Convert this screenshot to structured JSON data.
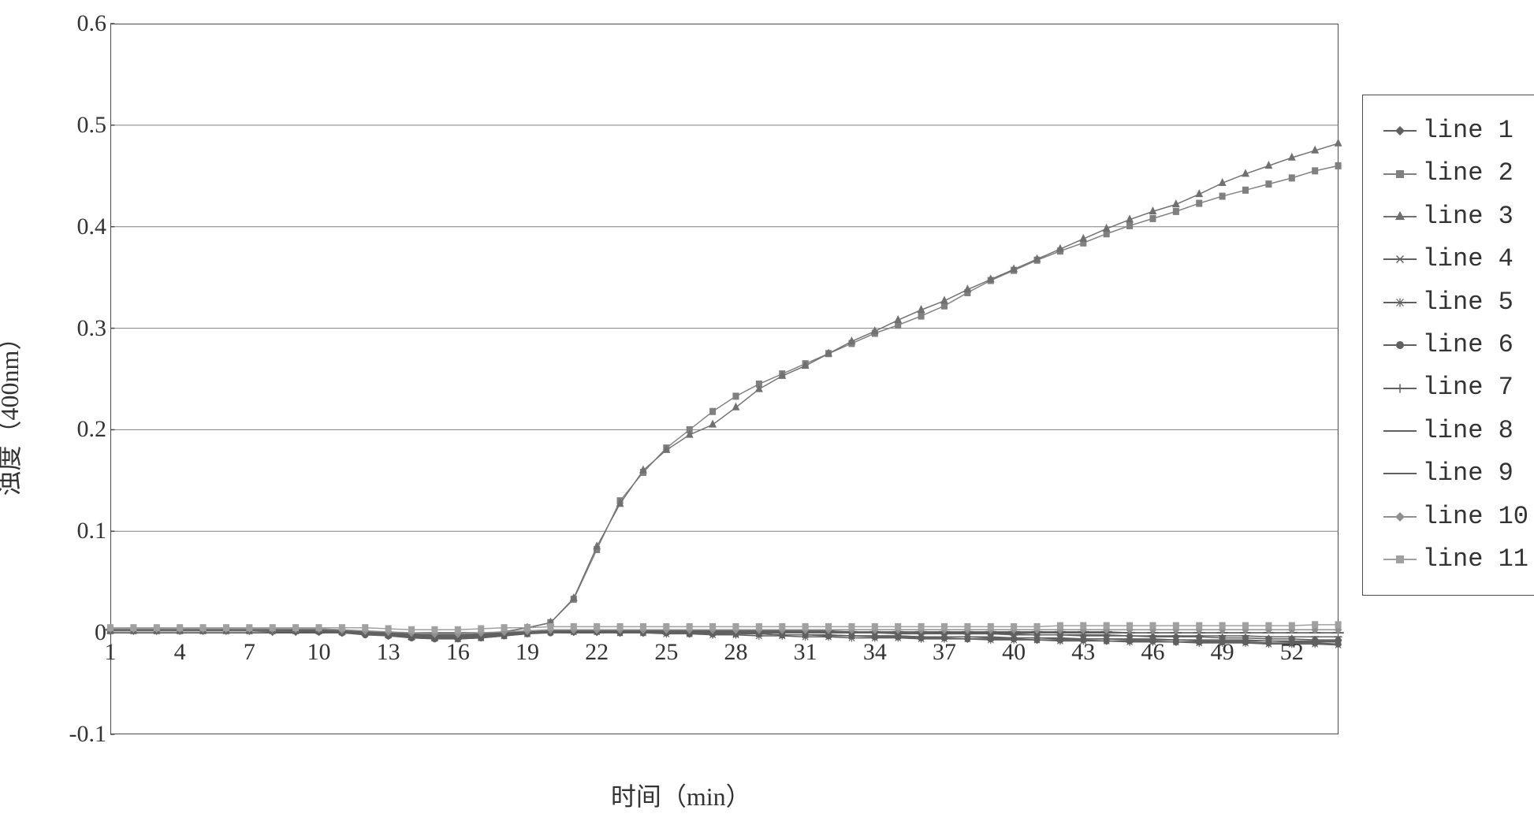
{
  "chart": {
    "type": "line",
    "ylabel": "浊度（400nm）",
    "xlabel": "时间（min）",
    "ylabel_fontsize": 32,
    "xlabel_fontsize": 32,
    "tick_fontsize": 30,
    "legend_fontsize": 32,
    "background_color": "#ffffff",
    "axis_color": "#4a4a4a",
    "gridline_color": "#808080",
    "text_color": "#333333",
    "ylim": [
      -0.1,
      0.6
    ],
    "yticks": [
      -0.1,
      0,
      0.1,
      0.2,
      0.3,
      0.4,
      0.5,
      0.6
    ],
    "ytick_labels": [
      "-0.1",
      "0",
      "0.1",
      "0.2",
      "0.3",
      "0.4",
      "0.5",
      "0.6"
    ],
    "xlim": [
      1,
      54
    ],
    "xticks": [
      1,
      4,
      7,
      10,
      13,
      16,
      19,
      22,
      25,
      28,
      31,
      34,
      37,
      40,
      43,
      46,
      49,
      52
    ],
    "xtick_labels": [
      "1",
      "4",
      "7",
      "10",
      "13",
      "16",
      "19",
      "22",
      "25",
      "28",
      "31",
      "34",
      "37",
      "40",
      "43",
      "46",
      "49",
      "52"
    ],
    "x_values": [
      1,
      2,
      3,
      4,
      5,
      6,
      7,
      8,
      9,
      10,
      11,
      12,
      13,
      14,
      15,
      16,
      17,
      18,
      19,
      20,
      21,
      22,
      23,
      24,
      25,
      26,
      27,
      28,
      29,
      30,
      31,
      32,
      33,
      34,
      35,
      36,
      37,
      38,
      39,
      40,
      41,
      42,
      43,
      44,
      45,
      46,
      47,
      48,
      49,
      50,
      51,
      52,
      53,
      54
    ],
    "marker_size": 8,
    "line_width": 1.5,
    "tick_inner_length": 6,
    "series": [
      {
        "name": "line 1",
        "marker": "diamond",
        "color": "#606060",
        "values": [
          0.002,
          0.002,
          0.002,
          0.002,
          0.002,
          0.002,
          0.002,
          0.001,
          0.001,
          0.001,
          0.0,
          -0.001,
          -0.003,
          -0.004,
          -0.005,
          -0.004,
          -0.002,
          0.0,
          0.001,
          0.001,
          0.001,
          0.001,
          0.001,
          0.001,
          0.001,
          0.001,
          0.001,
          0.001,
          0.001,
          0.001,
          0.001,
          0.001,
          0.0,
          0.0,
          0.0,
          0.0,
          -0.001,
          -0.001,
          -0.001,
          -0.001,
          -0.002,
          -0.002,
          -0.003,
          -0.003,
          -0.003,
          -0.004,
          -0.004,
          -0.004,
          -0.005,
          -0.005,
          -0.006,
          -0.006,
          -0.007,
          -0.007
        ]
      },
      {
        "name": "line 2",
        "marker": "square",
        "color": "#808080",
        "values": [
          0.002,
          0.002,
          0.002,
          0.002,
          0.002,
          0.002,
          0.002,
          0.002,
          0.002,
          0.002,
          0.001,
          0.0,
          -0.002,
          -0.004,
          -0.005,
          -0.004,
          -0.002,
          0.001,
          0.005,
          0.01,
          0.033,
          0.082,
          0.13,
          0.158,
          0.182,
          0.2,
          0.218,
          0.233,
          0.245,
          0.255,
          0.265,
          0.275,
          0.285,
          0.295,
          0.303,
          0.312,
          0.322,
          0.335,
          0.347,
          0.357,
          0.367,
          0.376,
          0.384,
          0.393,
          0.401,
          0.408,
          0.415,
          0.423,
          0.43,
          0.436,
          0.442,
          0.448,
          0.455,
          0.46
        ]
      },
      {
        "name": "line 3",
        "marker": "triangle",
        "color": "#707070",
        "values": [
          0.002,
          0.002,
          0.002,
          0.002,
          0.002,
          0.002,
          0.002,
          0.002,
          0.002,
          0.002,
          0.001,
          0.0,
          -0.002,
          -0.004,
          -0.005,
          -0.004,
          -0.002,
          0.001,
          0.005,
          0.01,
          0.034,
          0.085,
          0.127,
          0.16,
          0.18,
          0.195,
          0.205,
          0.222,
          0.24,
          0.253,
          0.263,
          0.275,
          0.287,
          0.297,
          0.308,
          0.318,
          0.327,
          0.338,
          0.348,
          0.358,
          0.368,
          0.378,
          0.388,
          0.398,
          0.407,
          0.415,
          0.422,
          0.432,
          0.443,
          0.452,
          0.46,
          0.468,
          0.475,
          0.482
        ]
      },
      {
        "name": "line 4",
        "marker": "x",
        "color": "#606060",
        "values": [
          0.003,
          0.003,
          0.003,
          0.003,
          0.003,
          0.003,
          0.003,
          0.003,
          0.003,
          0.002,
          0.001,
          0.0,
          -0.001,
          -0.003,
          -0.005,
          -0.006,
          -0.005,
          -0.003,
          -0.001,
          0.001,
          0.002,
          0.002,
          0.002,
          0.001,
          0.001,
          0.0,
          0.0,
          -0.001,
          -0.001,
          -0.002,
          -0.002,
          -0.002,
          -0.003,
          -0.003,
          -0.003,
          -0.004,
          -0.004,
          -0.004,
          -0.005,
          -0.005,
          -0.005,
          -0.006,
          -0.006,
          -0.006,
          -0.007,
          -0.007,
          -0.007,
          -0.008,
          -0.008,
          -0.008,
          -0.008,
          -0.009,
          -0.009,
          -0.009
        ]
      },
      {
        "name": "line 5",
        "marker": "star",
        "color": "#606060",
        "values": [
          0.003,
          0.003,
          0.003,
          0.003,
          0.003,
          0.003,
          0.003,
          0.003,
          0.003,
          0.002,
          0.001,
          0.0,
          -0.002,
          -0.004,
          -0.005,
          -0.005,
          -0.004,
          -0.002,
          0.0,
          0.001,
          0.001,
          0.001,
          0.0,
          0.0,
          -0.001,
          -0.001,
          -0.002,
          -0.002,
          -0.003,
          -0.003,
          -0.004,
          -0.004,
          -0.005,
          -0.005,
          -0.005,
          -0.006,
          -0.006,
          -0.006,
          -0.007,
          -0.007,
          -0.007,
          -0.008,
          -0.008,
          -0.008,
          -0.009,
          -0.009,
          -0.009,
          -0.01,
          -0.01,
          -0.01,
          -0.011,
          -0.011,
          -0.011,
          -0.012
        ]
      },
      {
        "name": "line 6",
        "marker": "circle",
        "color": "#606060",
        "values": [
          0.003,
          0.003,
          0.003,
          0.003,
          0.003,
          0.003,
          0.003,
          0.003,
          0.002,
          0.001,
          0.0,
          -0.002,
          -0.003,
          -0.005,
          -0.006,
          -0.006,
          -0.005,
          -0.003,
          -0.001,
          0.0,
          0.001,
          0.001,
          0.0,
          0.0,
          0.0,
          -0.001,
          -0.001,
          -0.001,
          -0.001,
          -0.002,
          -0.002,
          -0.003,
          -0.003,
          -0.004,
          -0.004,
          -0.005,
          -0.005,
          -0.006,
          -0.006,
          -0.006,
          -0.007,
          -0.007,
          -0.007,
          -0.008,
          -0.008,
          -0.008,
          -0.009,
          -0.009,
          -0.009,
          -0.009,
          -0.01,
          -0.01,
          -0.01,
          -0.011
        ]
      },
      {
        "name": "line 7",
        "marker": "plus",
        "color": "#606060",
        "values": [
          0.003,
          0.003,
          0.003,
          0.003,
          0.003,
          0.003,
          0.003,
          0.003,
          0.003,
          0.002,
          0.001,
          0.0,
          -0.001,
          -0.003,
          -0.004,
          -0.004,
          -0.003,
          -0.001,
          0.0,
          0.001,
          0.001,
          0.001,
          0.001,
          0.0,
          0.0,
          0.0,
          -0.001,
          -0.001,
          -0.001,
          -0.002,
          -0.002,
          -0.002,
          -0.003,
          -0.003,
          -0.003,
          -0.004,
          -0.004,
          -0.004,
          -0.004,
          -0.005,
          -0.005,
          -0.005,
          -0.006,
          -0.006,
          -0.006,
          -0.006,
          -0.007,
          -0.007,
          -0.007,
          -0.007,
          -0.008,
          -0.008,
          -0.008,
          -0.008
        ]
      },
      {
        "name": "line 8",
        "marker": "dash",
        "color": "#606060",
        "values": [
          0.003,
          0.003,
          0.003,
          0.003,
          0.003,
          0.003,
          0.003,
          0.003,
          0.003,
          0.002,
          0.001,
          0.0,
          -0.001,
          -0.002,
          -0.003,
          -0.003,
          -0.002,
          -0.001,
          0.0,
          0.001,
          0.001,
          0.001,
          0.001,
          0.001,
          0.001,
          0.001,
          0.001,
          0.0,
          0.0,
          0.0,
          0.0,
          0.0,
          0.0,
          0.0,
          -0.001,
          -0.001,
          -0.001,
          -0.001,
          -0.001,
          -0.002,
          -0.002,
          -0.002,
          -0.002,
          -0.002,
          -0.003,
          -0.003,
          -0.003,
          -0.003,
          -0.003,
          -0.003,
          -0.004,
          -0.004,
          -0.004,
          -0.004
        ]
      },
      {
        "name": "line 9",
        "marker": "longdash",
        "color": "#606060",
        "values": [
          0.003,
          0.003,
          0.003,
          0.003,
          0.003,
          0.003,
          0.003,
          0.003,
          0.003,
          0.003,
          0.002,
          0.001,
          0.0,
          -0.001,
          -0.002,
          -0.002,
          -0.001,
          0.0,
          0.001,
          0.002,
          0.002,
          0.002,
          0.002,
          0.002,
          0.002,
          0.002,
          0.002,
          0.002,
          0.002,
          0.002,
          0.002,
          0.002,
          0.001,
          0.001,
          0.001,
          0.001,
          0.001,
          0.001,
          0.001,
          0.001,
          0.001,
          0.001,
          0.001,
          0.001,
          0.0,
          0.0,
          0.0,
          0.0,
          0.0,
          0.0,
          0.0,
          0.0,
          0.0,
          0.0
        ]
      },
      {
        "name": "line 10",
        "marker": "diamond",
        "color": "#909090",
        "values": [
          0.004,
          0.004,
          0.004,
          0.004,
          0.004,
          0.004,
          0.004,
          0.004,
          0.004,
          0.004,
          0.003,
          0.002,
          0.001,
          0.0,
          -0.001,
          -0.001,
          0.0,
          0.001,
          0.002,
          0.003,
          0.003,
          0.003,
          0.003,
          0.003,
          0.003,
          0.003,
          0.003,
          0.003,
          0.003,
          0.003,
          0.003,
          0.003,
          0.003,
          0.003,
          0.003,
          0.003,
          0.003,
          0.003,
          0.003,
          0.003,
          0.003,
          0.003,
          0.003,
          0.003,
          0.003,
          0.003,
          0.003,
          0.003,
          0.003,
          0.003,
          0.003,
          0.003,
          0.003,
          0.003
        ]
      },
      {
        "name": "line 11",
        "marker": "square",
        "color": "#a0a0a0",
        "values": [
          0.005,
          0.005,
          0.005,
          0.005,
          0.005,
          0.005,
          0.005,
          0.005,
          0.005,
          0.005,
          0.005,
          0.005,
          0.004,
          0.003,
          0.003,
          0.003,
          0.004,
          0.005,
          0.005,
          0.006,
          0.006,
          0.006,
          0.006,
          0.006,
          0.006,
          0.006,
          0.006,
          0.006,
          0.006,
          0.006,
          0.006,
          0.006,
          0.006,
          0.006,
          0.006,
          0.006,
          0.006,
          0.006,
          0.006,
          0.006,
          0.006,
          0.007,
          0.007,
          0.007,
          0.007,
          0.007,
          0.007,
          0.007,
          0.007,
          0.007,
          0.007,
          0.007,
          0.008,
          0.008
        ]
      }
    ]
  }
}
